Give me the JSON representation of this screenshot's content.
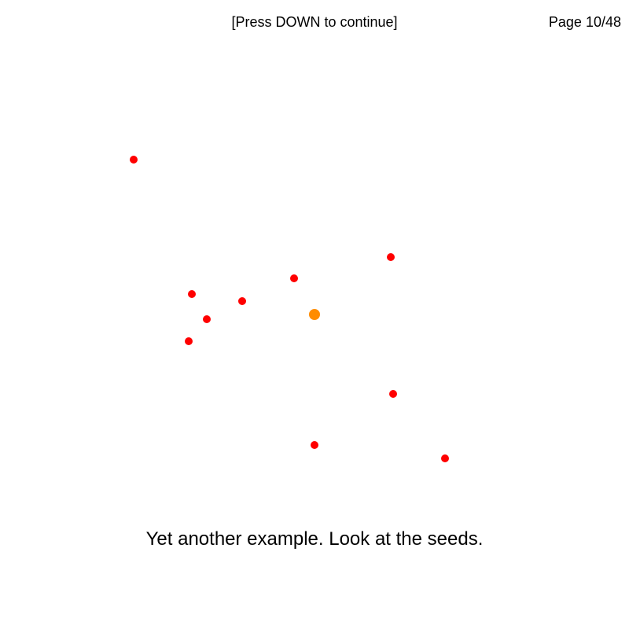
{
  "header": {
    "prompt": "[Press DOWN to continue]",
    "page": "Page 10/48"
  },
  "caption": "Yet another example. Look at the seeds.",
  "colors": {
    "seed": "#ff0000",
    "center_seed": "#ff8c00",
    "background": "#ffffff"
  },
  "seeds": [
    {
      "x": -230,
      "y": 197
    },
    {
      "x": 97,
      "y": 73
    },
    {
      "x": -26,
      "y": 46
    },
    {
      "x": -156,
      "y": 26
    },
    {
      "x": -92,
      "y": 17
    },
    {
      "x": -137,
      "y": -6
    },
    {
      "x": -160,
      "y": -34
    },
    {
      "x": 100,
      "y": -101
    },
    {
      "x": 0,
      "y": -166
    },
    {
      "x": 166,
      "y": -183
    }
  ],
  "center_seed": {
    "x": 0,
    "y": 0
  }
}
